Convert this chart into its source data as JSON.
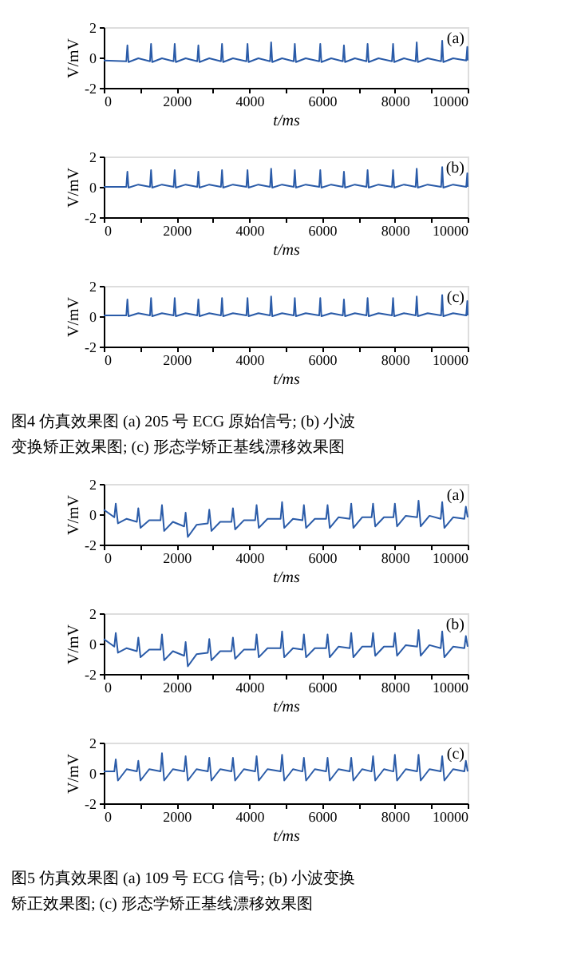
{
  "chart_data": [
    {
      "type": "line",
      "xlabel": "t/ms",
      "ylabel": "V/mV",
      "xlim": [
        0,
        10000
      ],
      "ylim": [
        -2,
        2
      ],
      "xticks": [
        0,
        {
          "value": 1000,
          "label": null
        },
        2000,
        {
          "value": 3000,
          "label": null
        },
        4000,
        {
          "value": 5000,
          "label": null
        },
        6000,
        {
          "value": 7000,
          "label": null
        },
        8000,
        {
          "value": 9000,
          "label": null
        },
        10000
      ],
      "yticks": [
        -2,
        0,
        2
      ],
      "grid": false,
      "annotations": [
        "(a)"
      ],
      "x": [
        0,
        620,
        650,
        680,
        950,
        1270,
        1300,
        1330,
        1600,
        1920,
        1950,
        1980,
        2250,
        2570,
        2600,
        2630,
        2900,
        3220,
        3250,
        3280,
        3550,
        3920,
        3950,
        3980,
        4250,
        4570,
        4600,
        4630,
        4900,
        5220,
        5250,
        5280,
        5550,
        5920,
        5950,
        5980,
        6250,
        6570,
        6600,
        6630,
        6900,
        7220,
        7250,
        7280,
        7550,
        7920,
        7950,
        7980,
        8250,
        8570,
        8600,
        8630,
        8900,
        9270,
        9300,
        9330,
        9600,
        9960,
        9990,
        10000
      ],
      "series": [
        {
          "color": "#2a5ba8",
          "values": [
            -0.2,
            -0.25,
            0.8,
            -0.3,
            -0.05,
            -0.25,
            0.9,
            -0.3,
            -0.05,
            -0.25,
            0.9,
            -0.3,
            -0.05,
            -0.25,
            0.8,
            -0.3,
            -0.05,
            -0.25,
            0.9,
            -0.3,
            -0.05,
            -0.25,
            0.9,
            -0.3,
            -0.05,
            -0.25,
            1.0,
            -0.3,
            -0.05,
            -0.25,
            0.9,
            -0.3,
            -0.05,
            -0.25,
            0.9,
            -0.3,
            -0.05,
            -0.25,
            0.8,
            -0.3,
            -0.05,
            -0.25,
            0.9,
            -0.3,
            -0.05,
            -0.25,
            0.9,
            -0.3,
            -0.05,
            -0.25,
            1.0,
            -0.3,
            -0.05,
            -0.25,
            1.1,
            -0.3,
            -0.05,
            -0.2,
            0.7,
            -0.2
          ]
        }
      ]
    },
    {
      "type": "line",
      "xlabel": "t/ms",
      "ylabel": "V/mV",
      "xlim": [
        0,
        10000
      ],
      "ylim": [
        -2,
        2
      ],
      "xticks": [
        0,
        {
          "value": 1000,
          "label": null
        },
        2000,
        {
          "value": 3000,
          "label": null
        },
        4000,
        {
          "value": 5000,
          "label": null
        },
        6000,
        {
          "value": 7000,
          "label": null
        },
        8000,
        {
          "value": 9000,
          "label": null
        },
        10000
      ],
      "yticks": [
        -2,
        0,
        2
      ],
      "grid": false,
      "annotations": [
        "(b)"
      ],
      "x": [
        0,
        620,
        650,
        680,
        950,
        1270,
        1300,
        1330,
        1600,
        1920,
        1950,
        1980,
        2250,
        2570,
        2600,
        2630,
        2900,
        3220,
        3250,
        3280,
        3550,
        3920,
        3950,
        3980,
        4250,
        4570,
        4600,
        4630,
        4900,
        5220,
        5250,
        5280,
        5550,
        5920,
        5950,
        5980,
        6250,
        6570,
        6600,
        6630,
        6900,
        7220,
        7250,
        7280,
        7550,
        7920,
        7950,
        7980,
        8250,
        8570,
        8600,
        8630,
        8900,
        9270,
        9300,
        9330,
        9600,
        9960,
        9990,
        10000
      ],
      "series": [
        {
          "color": "#2a5ba8",
          "values": [
            0.0,
            0.0,
            1.0,
            -0.05,
            0.15,
            0.0,
            1.1,
            -0.05,
            0.15,
            0.0,
            1.1,
            -0.05,
            0.15,
            0.0,
            1.0,
            -0.05,
            0.15,
            0.0,
            1.1,
            -0.05,
            0.15,
            0.0,
            1.1,
            -0.05,
            0.15,
            0.0,
            1.2,
            -0.05,
            0.15,
            0.0,
            1.1,
            -0.05,
            0.15,
            0.0,
            1.1,
            -0.05,
            0.15,
            0.0,
            1.0,
            -0.05,
            0.15,
            0.0,
            1.1,
            -0.05,
            0.15,
            0.0,
            1.1,
            -0.05,
            0.15,
            0.0,
            1.2,
            -0.05,
            0.15,
            0.0,
            1.3,
            -0.05,
            0.15,
            0.0,
            0.9,
            0.0
          ]
        }
      ]
    },
    {
      "type": "line",
      "xlabel": "t/ms",
      "ylabel": "V/mV",
      "xlim": [
        0,
        10000
      ],
      "ylim": [
        -2,
        2
      ],
      "xticks": [
        0,
        {
          "value": 1000,
          "label": null
        },
        2000,
        {
          "value": 3000,
          "label": null
        },
        4000,
        {
          "value": 5000,
          "label": null
        },
        6000,
        {
          "value": 7000,
          "label": null
        },
        8000,
        {
          "value": 9000,
          "label": null
        },
        10000
      ],
      "yticks": [
        -2,
        0,
        2
      ],
      "grid": false,
      "annotations": [
        "(c)",
        "图4    仿真效果图    (a) 205 号 ECG 原始信号; (b) 小波",
        "变换矫正效果图; (c) 形态学矫正基线漂移效果图"
      ],
      "x": [
        0,
        620,
        650,
        680,
        950,
        1270,
        1300,
        1330,
        1600,
        1920,
        1950,
        1980,
        2250,
        2570,
        2600,
        2630,
        2900,
        3220,
        3250,
        3280,
        3550,
        3920,
        3950,
        3980,
        4250,
        4570,
        4600,
        4630,
        4900,
        5220,
        5250,
        5280,
        5550,
        5920,
        5950,
        5980,
        6250,
        6570,
        6600,
        6630,
        6900,
        7220,
        7250,
        7280,
        7550,
        7920,
        7950,
        7980,
        8250,
        8570,
        8600,
        8630,
        8900,
        9270,
        9300,
        9330,
        9600,
        9960,
        9990,
        10000
      ],
      "series": [
        {
          "color": "#2a5ba8",
          "values": [
            0.05,
            0.05,
            1.1,
            0.0,
            0.2,
            0.05,
            1.2,
            0.0,
            0.2,
            0.05,
            1.2,
            0.0,
            0.2,
            0.05,
            1.1,
            0.0,
            0.2,
            0.05,
            1.2,
            0.0,
            0.2,
            0.05,
            1.2,
            0.0,
            0.2,
            0.05,
            1.3,
            0.0,
            0.2,
            0.05,
            1.2,
            0.0,
            0.2,
            0.05,
            1.2,
            0.0,
            0.2,
            0.05,
            1.1,
            0.0,
            0.2,
            0.05,
            1.2,
            0.0,
            0.2,
            0.05,
            1.2,
            0.0,
            0.2,
            0.05,
            1.3,
            0.0,
            0.2,
            0.05,
            1.4,
            0.0,
            0.2,
            0.05,
            1.0,
            0.05
          ]
        }
      ]
    },
    {
      "type": "line",
      "xlabel": "t/ms",
      "ylabel": "V/mV",
      "xlim": [
        0,
        10000
      ],
      "ylim": [
        -2,
        2
      ],
      "xticks": [
        0,
        {
          "value": 1000,
          "label": null
        },
        2000,
        {
          "value": 3000,
          "label": null
        },
        4000,
        {
          "value": 5000,
          "label": null
        },
        6000,
        {
          "value": 7000,
          "label": null
        },
        8000,
        {
          "value": 9000,
          "label": null
        },
        10000
      ],
      "yticks": [
        -2,
        0,
        2
      ],
      "grid": false,
      "annotations": [
        "(a)"
      ],
      "x": [
        0,
        290,
        330,
        390,
        630,
        910,
        950,
        1010,
        1250,
        1560,
        1600,
        1660,
        1900,
        2210,
        2250,
        2310,
        2550,
        2860,
        2900,
        2960,
        3200,
        3510,
        3550,
        3610,
        3850,
        4160,
        4200,
        4260,
        4500,
        4860,
        4900,
        4960,
        5200,
        5460,
        5500,
        5560,
        5800,
        6110,
        6150,
        6210,
        6450,
        6760,
        6800,
        6860,
        7100,
        7360,
        7400,
        7460,
        7700,
        7960,
        8000,
        8060,
        8300,
        8610,
        8650,
        8710,
        8950,
        9260,
        9300,
        9360,
        9600,
        9910,
        9950,
        10000
      ],
      "series": [
        {
          "color": "#2a5ba8",
          "values": [
            0.3,
            -0.2,
            0.7,
            -0.6,
            -0.3,
            -0.5,
            0.4,
            -0.9,
            -0.4,
            -0.4,
            0.6,
            -1.1,
            -0.5,
            -0.8,
            0.1,
            -1.5,
            -0.7,
            -0.6,
            0.3,
            -1.1,
            -0.5,
            -0.5,
            0.4,
            -1.0,
            -0.4,
            -0.4,
            0.6,
            -0.9,
            -0.3,
            -0.3,
            0.8,
            -0.9,
            -0.3,
            -0.4,
            0.6,
            -0.9,
            -0.3,
            -0.3,
            0.6,
            -0.9,
            -0.2,
            -0.3,
            0.7,
            -0.9,
            -0.2,
            -0.2,
            0.7,
            -0.8,
            -0.2,
            -0.2,
            0.7,
            -0.8,
            -0.1,
            -0.2,
            0.9,
            -0.8,
            -0.1,
            -0.3,
            0.8,
            -0.9,
            -0.2,
            -0.3,
            0.5,
            -0.2
          ]
        }
      ]
    },
    {
      "type": "line",
      "xlabel": "t/ms",
      "ylabel": "V/mV",
      "xlim": [
        0,
        10000
      ],
      "ylim": [
        -2,
        2
      ],
      "xticks": [
        0,
        {
          "value": 1000,
          "label": null
        },
        2000,
        {
          "value": 3000,
          "label": null
        },
        4000,
        {
          "value": 5000,
          "label": null
        },
        6000,
        {
          "value": 7000,
          "label": null
        },
        8000,
        {
          "value": 9000,
          "label": null
        },
        10000
      ],
      "yticks": [
        -2,
        0,
        2
      ],
      "grid": false,
      "annotations": [
        "(b)"
      ],
      "x": [
        0,
        290,
        330,
        390,
        630,
        910,
        950,
        1010,
        1250,
        1560,
        1600,
        1660,
        1900,
        2210,
        2250,
        2310,
        2550,
        2860,
        2900,
        2960,
        3200,
        3510,
        3550,
        3610,
        3850,
        4160,
        4200,
        4260,
        4500,
        4860,
        4900,
        4960,
        5200,
        5460,
        5500,
        5560,
        5800,
        6110,
        6150,
        6210,
        6450,
        6760,
        6800,
        6860,
        7100,
        7360,
        7400,
        7460,
        7700,
        7960,
        8000,
        8060,
        8300,
        8610,
        8650,
        8710,
        8950,
        9260,
        9300,
        9360,
        9600,
        9910,
        9950,
        10000
      ],
      "series": [
        {
          "color": "#2a5ba8",
          "values": [
            0.3,
            -0.2,
            0.7,
            -0.6,
            -0.3,
            -0.5,
            0.4,
            -0.9,
            -0.4,
            -0.4,
            0.6,
            -1.1,
            -0.5,
            -0.8,
            0.1,
            -1.5,
            -0.7,
            -0.6,
            0.3,
            -1.1,
            -0.5,
            -0.5,
            0.4,
            -1.0,
            -0.4,
            -0.4,
            0.6,
            -0.9,
            -0.3,
            -0.3,
            0.8,
            -0.9,
            -0.3,
            -0.4,
            0.6,
            -0.9,
            -0.3,
            -0.3,
            0.6,
            -0.9,
            -0.2,
            -0.3,
            0.7,
            -0.9,
            -0.2,
            -0.2,
            0.7,
            -0.8,
            -0.2,
            -0.2,
            0.7,
            -0.8,
            -0.1,
            -0.2,
            0.9,
            -0.8,
            -0.1,
            -0.3,
            0.8,
            -0.9,
            -0.2,
            -0.3,
            0.5,
            -0.2
          ]
        }
      ]
    },
    {
      "type": "line",
      "xlabel": "t/ms",
      "ylabel": "V/mV",
      "xlim": [
        0,
        10000
      ],
      "ylim": [
        -2,
        2
      ],
      "xticks": [
        0,
        {
          "value": 1000,
          "label": null
        },
        2000,
        {
          "value": 3000,
          "label": null
        },
        4000,
        {
          "value": 5000,
          "label": null
        },
        6000,
        {
          "value": 7000,
          "label": null
        },
        8000,
        {
          "value": 9000,
          "label": null
        },
        10000
      ],
      "yticks": [
        -2,
        0,
        2
      ],
      "grid": false,
      "annotations": [
        "(c)",
        "图5    仿真效果图    (a) 109 号 ECG 信号; (b) 小波变换",
        "矫正效果图; (c) 形态学矫正基线漂移效果图"
      ],
      "x": [
        0,
        290,
        330,
        390,
        630,
        910,
        950,
        1010,
        1250,
        1560,
        1600,
        1660,
        1900,
        2210,
        2250,
        2310,
        2550,
        2860,
        2900,
        2960,
        3200,
        3510,
        3550,
        3610,
        3850,
        4160,
        4200,
        4260,
        4500,
        4860,
        4900,
        4960,
        5200,
        5460,
        5500,
        5560,
        5800,
        6110,
        6150,
        6210,
        6450,
        6760,
        6800,
        6860,
        7100,
        7360,
        7400,
        7460,
        7700,
        7960,
        8000,
        8060,
        8300,
        8610,
        8650,
        8710,
        8950,
        9260,
        9300,
        9360,
        9600,
        9910,
        9950,
        10000
      ],
      "series": [
        {
          "color": "#2a5ba8",
          "values": [
            0.1,
            0.1,
            0.9,
            -0.5,
            0.25,
            0.1,
            0.8,
            -0.5,
            0.25,
            0.1,
            1.3,
            -0.5,
            0.25,
            0.1,
            1.1,
            -0.5,
            0.25,
            0.1,
            1.0,
            -0.5,
            0.25,
            0.1,
            1.0,
            -0.5,
            0.25,
            0.1,
            1.1,
            -0.5,
            0.25,
            0.1,
            1.2,
            -0.5,
            0.25,
            0.1,
            1.0,
            -0.5,
            0.25,
            0.1,
            1.0,
            -0.5,
            0.25,
            0.1,
            1.0,
            -0.5,
            0.25,
            0.1,
            1.1,
            -0.5,
            0.25,
            0.1,
            1.2,
            -0.5,
            0.25,
            0.1,
            1.2,
            -0.5,
            0.25,
            0.1,
            1.1,
            -0.5,
            0.25,
            0.1,
            0.8,
            0.1
          ]
        }
      ]
    }
  ]
}
